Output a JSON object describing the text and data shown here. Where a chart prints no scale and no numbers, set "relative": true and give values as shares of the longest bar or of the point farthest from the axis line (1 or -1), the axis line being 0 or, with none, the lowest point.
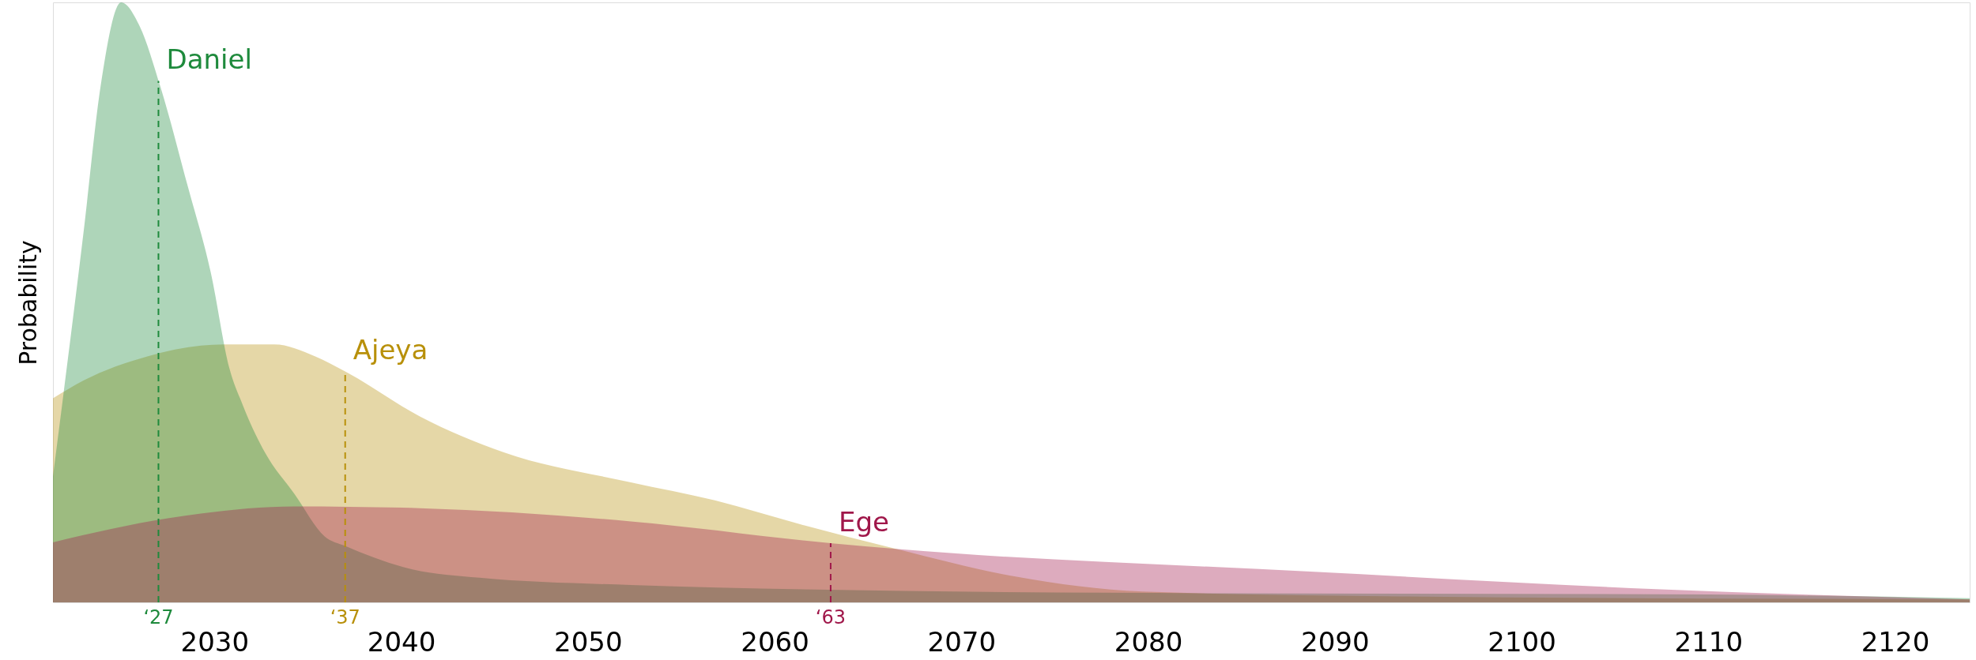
{
  "chart_data": {
    "type": "area",
    "ylabel": "Probability",
    "relative": true,
    "xlim": [
      2021.35,
      2124
    ],
    "xticks": [
      2030,
      2040,
      2050,
      2060,
      2070,
      2080,
      2090,
      2100,
      2110,
      2120
    ],
    "grid": false,
    "series": [
      {
        "name": "Ajeya",
        "color": "#b8900a",
        "x": [
          2021.35,
          2023.0,
          2026.4,
          2030.5,
          2033.2,
          2035.4,
          2037.0,
          2041.0,
          2045.5,
          2052.3,
          2056.8,
          2061.4,
          2066.5,
          2072.9,
          2079.7,
          2093.5,
          2124
        ],
        "values": [
          0.34,
          0.37,
          0.41,
          0.43,
          0.43,
          0.41,
          0.385,
          0.31,
          0.25,
          0.2,
          0.17,
          0.13,
          0.089,
          0.043,
          0.018,
          0.01,
          0.005
        ]
      },
      {
        "name": "Daniel",
        "color": "#1e8a3c",
        "x": [
          2021.35,
          2023.0,
          2023.9,
          2025.0,
          2026.0,
          2027.1,
          2028.6,
          2029.8,
          2030.8,
          2031.5,
          2032.2,
          2032.7,
          2034.3,
          2035.9,
          2037.0,
          2040.6,
          2044.2,
          2052.3,
          2077.9,
          2110,
          2124
        ],
        "values": [
          0.21,
          0.62,
          0.86,
          1.0,
          0.96,
          0.86,
          0.69,
          0.55,
          0.39,
          0.33,
          0.28,
          0.25,
          0.18,
          0.11,
          0.094,
          0.055,
          0.041,
          0.029,
          0.016,
          0.013,
          0.007
        ]
      },
      {
        "name": "Ege",
        "color": "#a0174a",
        "x": [
          2021.35,
          2027.5,
          2034.3,
          2041.0,
          2052.3,
          2063.2,
          2066.5,
          2088.9,
          2107.2,
          2124
        ],
        "values": [
          0.1,
          0.14,
          0.16,
          0.157,
          0.135,
          0.098,
          0.089,
          0.051,
          0.022,
          0.005
        ]
      }
    ],
    "ref_lines": [
      {
        "axis": "x",
        "value": 2027,
        "label": "‘27",
        "color": "#1e8a3c",
        "line_style": "dashed"
      },
      {
        "axis": "x",
        "value": 2037,
        "label": "‘37",
        "color": "#b8900a",
        "line_style": "dashed"
      },
      {
        "axis": "x",
        "value": 2063,
        "label": "‘63",
        "color": "#a0174a",
        "line_style": "dashed"
      }
    ]
  }
}
